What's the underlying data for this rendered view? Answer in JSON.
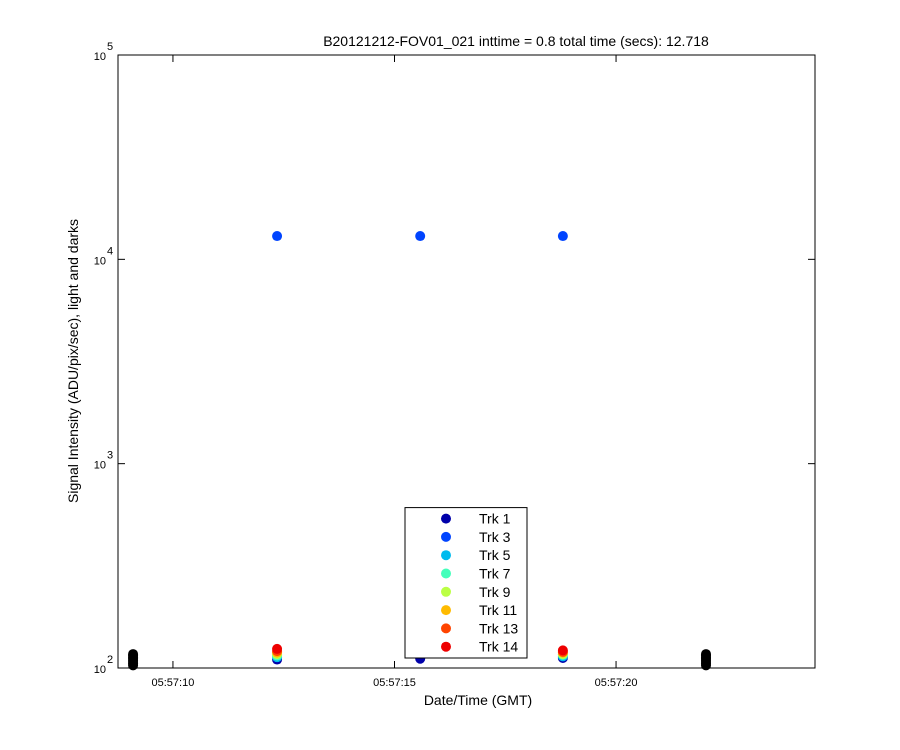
{
  "chart_data": {
    "type": "scatter",
    "title": "B20121212-FOV01_021 inttime = 0.8 total time (secs): 12.718",
    "x_label": "Date/Time (GMT)",
    "y_label": "Signal Intensity (ADU/pix/sec), light and darks",
    "log_y": true,
    "legend": "bottom-center",
    "xlim": [
      8.76,
      24.49
    ],
    "xticks": [
      {
        "value": 10,
        "label": "05:57:10"
      },
      {
        "value": 15,
        "label": "05:57:15"
      },
      {
        "value": 20,
        "label": "05:57:20"
      }
    ],
    "ylim": [
      100,
      100000
    ],
    "yticks": [
      {
        "value": 100,
        "label": "10",
        "exponent": "2"
      },
      {
        "value": 1000,
        "label": "10",
        "exponent": "3"
      },
      {
        "value": 10000,
        "label": "10",
        "exponent": "4"
      },
      {
        "value": 100000,
        "label": "10",
        "exponent": "5"
      }
    ],
    "x": [
      12.35,
      15.58,
      18.8
    ],
    "series": [
      {
        "name": "Trk 1",
        "color": "#0000aa",
        "values": [
          110,
          111,
          112
        ]
      },
      {
        "name": "Trk 3",
        "color": "#0044ff",
        "values": [
          13000,
          13000,
          13000
        ]
      },
      {
        "name": "Trk 5",
        "color": "#00bbee",
        "values": [
          113,
          null,
          114
        ]
      },
      {
        "name": "Trk 7",
        "color": "#44ffbb",
        "values": [
          115,
          null,
          116
        ]
      },
      {
        "name": "Trk 9",
        "color": "#bbff44",
        "values": [
          117,
          null,
          117
        ]
      },
      {
        "name": "Trk 11",
        "color": "#ffbb00",
        "values": [
          119,
          null,
          119
        ]
      },
      {
        "name": "Trk 13",
        "color": "#ff4400",
        "values": [
          121,
          null,
          120
        ]
      },
      {
        "name": "Trk 14",
        "color": "#ee0000",
        "values": [
          124,
          null,
          122
        ]
      }
    ],
    "dark_points": {
      "color": "#000000",
      "x": [
        9.1,
        9.1,
        9.1,
        9.1,
        9.1,
        9.1,
        9.1,
        9.1,
        22.03,
        22.03,
        22.03,
        22.03,
        22.03,
        22.03,
        22.03,
        22.03
      ],
      "values": [
        103,
        105,
        107,
        109,
        111,
        113,
        115,
        117,
        103,
        105,
        107,
        109,
        111,
        113,
        115,
        117
      ]
    }
  }
}
